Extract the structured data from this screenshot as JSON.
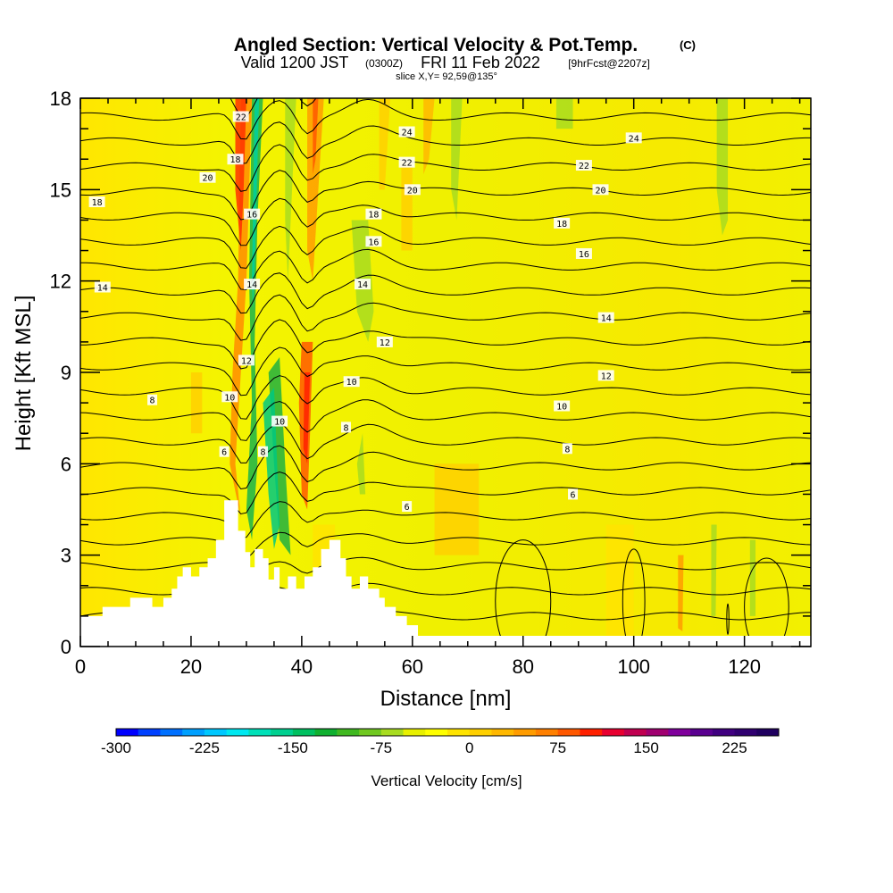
{
  "chart_data": {
    "type": "heatmap",
    "title": "Angled Section: Vertical Velocity & Pot.Temp.",
    "title_units": "(C)",
    "subtitle": {
      "valid": "Valid 1200 JST",
      "utc": "(0300Z)",
      "date": "FRI 11 Feb 2022",
      "forecast": "[9hrFcst@2207z]"
    },
    "slice_label": "slice X,Y= 92,59@135°",
    "xlabel": "Distance [nm]",
    "ylabel": "Height [Kft MSL]",
    "xlim": [
      0,
      132
    ],
    "ylim": [
      0,
      18
    ],
    "x_ticks": [
      "0",
      "20",
      "40",
      "60",
      "80",
      "100",
      "120"
    ],
    "y_ticks": [
      "0",
      "3",
      "6",
      "9",
      "12",
      "15",
      "18"
    ],
    "colorbar": {
      "label": "Vertical Velocity [cm/s]",
      "range": [
        -300,
        262.5
      ],
      "step": 18.75,
      "tick_labels": [
        "-300",
        "-225",
        "-150",
        "-75",
        "0",
        "75",
        "150",
        "225"
      ],
      "colors": [
        "#0000ff",
        "#0040ff",
        "#0070ff",
        "#00a0ff",
        "#00c8ff",
        "#00e8f0",
        "#00e0b8",
        "#00d090",
        "#00c060",
        "#10b030",
        "#40b820",
        "#70c820",
        "#a8dc20",
        "#e8f000",
        "#ffff00",
        "#ffe400",
        "#ffd000",
        "#ffb800",
        "#ff9c00",
        "#ff8000",
        "#ff5800",
        "#ff2000",
        "#e80030",
        "#c00050",
        "#a00070",
        "#80009c",
        "#5a0090",
        "#400080",
        "#300070",
        "#200060"
      ]
    },
    "series": [
      {
        "name": "Potential Temperature (C) contours",
        "contour_labels": [
          {
            "x": 29,
            "y": 17.4,
            "text": "22"
          },
          {
            "x": 28,
            "y": 16.0,
            "text": "18"
          },
          {
            "x": 23,
            "y": 15.4,
            "text": "20"
          },
          {
            "x": 31,
            "y": 14.2,
            "text": "16"
          },
          {
            "x": 31,
            "y": 11.9,
            "text": "14"
          },
          {
            "x": 30,
            "y": 9.4,
            "text": "12"
          },
          {
            "x": 27,
            "y": 8.2,
            "text": "10"
          },
          {
            "x": 26,
            "y": 6.4,
            "text": "6"
          },
          {
            "x": 33,
            "y": 6.4,
            "text": "8"
          },
          {
            "x": 36,
            "y": 7.4,
            "text": "10"
          },
          {
            "x": 3,
            "y": 14.6,
            "text": "18"
          },
          {
            "x": 4,
            "y": 11.8,
            "text": "14"
          },
          {
            "x": 13,
            "y": 8.1,
            "text": "8"
          },
          {
            "x": 59,
            "y": 16.9,
            "text": "24"
          },
          {
            "x": 59,
            "y": 15.9,
            "text": "22"
          },
          {
            "x": 60,
            "y": 15.0,
            "text": "20"
          },
          {
            "x": 53,
            "y": 14.2,
            "text": "18"
          },
          {
            "x": 53,
            "y": 13.3,
            "text": "16"
          },
          {
            "x": 51,
            "y": 11.9,
            "text": "14"
          },
          {
            "x": 55,
            "y": 10.0,
            "text": "12"
          },
          {
            "x": 49,
            "y": 8.7,
            "text": "10"
          },
          {
            "x": 48,
            "y": 7.2,
            "text": "8"
          },
          {
            "x": 59,
            "y": 4.6,
            "text": "6"
          },
          {
            "x": 100,
            "y": 16.7,
            "text": "24"
          },
          {
            "x": 91,
            "y": 15.8,
            "text": "22"
          },
          {
            "x": 94,
            "y": 15.0,
            "text": "20"
          },
          {
            "x": 87,
            "y": 13.9,
            "text": "18"
          },
          {
            "x": 91,
            "y": 12.9,
            "text": "16"
          },
          {
            "x": 95,
            "y": 10.8,
            "text": "14"
          },
          {
            "x": 95,
            "y": 8.9,
            "text": "12"
          },
          {
            "x": 87,
            "y": 7.9,
            "text": "10"
          },
          {
            "x": 88,
            "y": 6.5,
            "text": "8"
          },
          {
            "x": 89,
            "y": 5.0,
            "text": "6"
          }
        ]
      }
    ]
  }
}
